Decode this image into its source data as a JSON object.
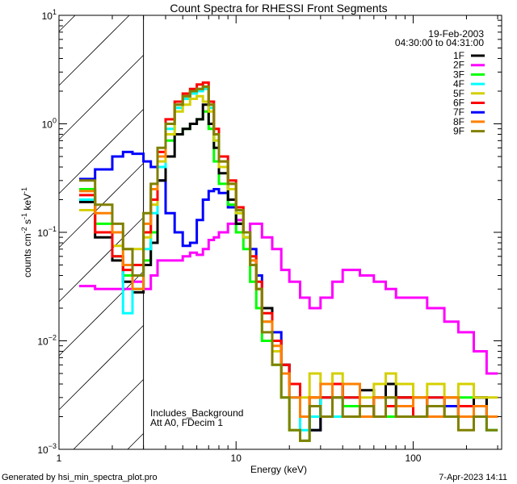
{
  "chart_data": {
    "type": "line",
    "style": "histogram-step",
    "title": "Count Spectra for RHESSI Front Segments",
    "xlabel": "Energy (keV)",
    "ylabel": {
      "base": "counts cm",
      "exp1": "-2",
      "mid": " s",
      "exp2": "-1",
      "mid2": " keV",
      "exp3": "-1"
    },
    "xscale": "log",
    "yscale": "log",
    "xlim": [
      1,
      316
    ],
    "ylim": [
      0.001,
      10
    ],
    "x_ticks": [
      {
        "value": 1,
        "label": "1"
      },
      {
        "value": 10,
        "label": "10"
      },
      {
        "value": 100,
        "label": "100"
      }
    ],
    "y_ticks": [
      {
        "value": 10,
        "base": "10",
        "exp": "1"
      },
      {
        "value": 1,
        "base": "10",
        "exp": "0"
      },
      {
        "value": 0.1,
        "base": "10",
        "exp": "−1"
      },
      {
        "value": 0.01,
        "base": "10",
        "exp": "−2"
      },
      {
        "value": 0.001,
        "base": "10",
        "exp": "−3"
      }
    ],
    "shaded_region": [
      1,
      3
    ],
    "legend_position": "top-right",
    "legend_header": [
      "19-Feb-2003",
      "04:30:00 to 04:31:00"
    ],
    "annotations": [
      "Includes_Background",
      "Att A0, FDecim 1"
    ],
    "bin_edges": [
      1.3,
      1.6,
      2.0,
      2.3,
      2.6,
      3.0,
      3.3,
      3.6,
      4.0,
      4.5,
      5.0,
      5.5,
      6.0,
      6.5,
      7.0,
      7.5,
      8.0,
      9.0,
      10,
      11,
      12,
      13,
      14,
      16,
      18,
      20,
      23,
      26,
      30,
      35,
      40,
      50,
      60,
      70,
      80,
      100,
      120,
      150,
      180,
      220,
      260,
      300
    ],
    "series": [
      {
        "name": "2F",
        "color": "#ff00ff",
        "values": [
          0.032,
          0.03,
          0.03,
          0.03,
          0.035,
          0.03,
          0.04,
          0.055,
          0.055,
          0.055,
          0.06,
          0.065,
          0.062,
          0.07,
          0.085,
          0.09,
          0.1,
          0.12,
          0.13,
          0.1,
          0.12,
          0.12,
          0.09,
          0.07,
          0.045,
          0.035,
          0.025,
          0.02,
          0.025,
          0.035,
          0.045,
          0.04,
          0.035,
          0.03,
          0.025,
          0.025,
          0.02,
          0.015,
          0.012,
          0.008,
          0.005
        ]
      },
      {
        "name": "7F",
        "color": "#0000ff",
        "values": [
          0.31,
          0.38,
          0.5,
          0.55,
          0.53,
          0.45,
          0.4,
          0.3,
          0.15,
          0.1,
          0.075,
          0.08,
          0.13,
          0.2,
          0.24,
          0.25,
          0.23,
          0.17,
          0.12,
          0.1,
          0.07,
          0.04,
          0.02,
          0.012,
          0.006,
          0.003,
          0.002,
          0.0015,
          0.003,
          0.003,
          0.004,
          0.002,
          0.003,
          0.0025,
          0.003,
          0.002,
          0.003,
          0.0025,
          0.002,
          0.003,
          0.002
        ]
      },
      {
        "name": "3F",
        "color": "#00ff00",
        "values": [
          0.25,
          0.12,
          0.06,
          0.04,
          0.03,
          0.055,
          0.1,
          0.4,
          0.7,
          0.8,
          0.9,
          1.0,
          1.1,
          1.3,
          0.9,
          0.45,
          0.28,
          0.18,
          0.1,
          0.07,
          0.035,
          0.02,
          0.01,
          0.006,
          0.003,
          0.0015,
          0.0012,
          0.003,
          0.002,
          0.003,
          0.0025,
          0.002,
          0.003,
          0.002,
          0.003,
          0.002,
          0.0025,
          0.002,
          0.003,
          0.002,
          0.0015
        ]
      },
      {
        "name": "1F",
        "color": "#000000",
        "values": [
          0.19,
          0.09,
          0.055,
          0.035,
          0.028,
          0.05,
          0.08,
          0.3,
          0.5,
          0.8,
          0.9,
          1.0,
          1.1,
          1.5,
          1.0,
          0.6,
          0.35,
          0.2,
          0.12,
          0.09,
          0.05,
          0.03,
          0.02,
          0.01,
          0.006,
          0.004,
          0.002,
          0.0015,
          0.003,
          0.004,
          0.003,
          0.0035,
          0.002,
          0.004,
          0.003,
          0.003,
          0.0025,
          0.003,
          0.002,
          0.003,
          0.002
        ]
      },
      {
        "name": "4F",
        "color": "#00ffff",
        "values": [
          0.2,
          0.1,
          0.06,
          0.018,
          0.03,
          0.07,
          0.15,
          0.4,
          0.9,
          1.4,
          1.7,
          1.9,
          2.0,
          2.1,
          1.4,
          0.7,
          0.4,
          0.25,
          0.15,
          0.09,
          0.05,
          0.03,
          0.015,
          0.008,
          0.005,
          0.003,
          0.0015,
          0.002,
          0.003,
          0.002,
          0.003,
          0.002,
          0.003,
          0.0025,
          0.002,
          0.002,
          0.003,
          0.002,
          0.0025,
          0.002,
          0.0015
        ]
      },
      {
        "name": "5F",
        "color": "#d4d000",
        "values": [
          0.16,
          0.1,
          0.075,
          0.07,
          0.07,
          0.09,
          0.18,
          0.45,
          0.8,
          1.3,
          1.5,
          1.7,
          1.8,
          1.6,
          1.3,
          0.7,
          0.4,
          0.25,
          0.15,
          0.09,
          0.05,
          0.03,
          0.015,
          0.008,
          0.005,
          0.004,
          0.003,
          0.005,
          0.004,
          0.005,
          0.004,
          0.003,
          0.004,
          0.005,
          0.004,
          0.003,
          0.004,
          0.003,
          0.004,
          0.003,
          0.003
        ]
      },
      {
        "name": "6F",
        "color": "#ff0000",
        "values": [
          0.22,
          0.1,
          0.06,
          0.045,
          0.05,
          0.1,
          0.2,
          0.55,
          1.1,
          1.6,
          1.9,
          2.1,
          2.3,
          2.4,
          1.6,
          0.9,
          0.5,
          0.3,
          0.17,
          0.1,
          0.06,
          0.035,
          0.018,
          0.01,
          0.006,
          0.004,
          0.002,
          0.003,
          0.003,
          0.004,
          0.003,
          0.002,
          0.003,
          0.0025,
          0.003,
          0.002,
          0.003,
          0.002,
          0.0025,
          0.002,
          0.002
        ]
      },
      {
        "name": "8F",
        "color": "#ff8000",
        "values": [
          0.24,
          0.15,
          0.1,
          0.05,
          0.03,
          0.12,
          0.25,
          0.5,
          1.0,
          1.5,
          1.8,
          2.0,
          2.1,
          2.2,
          1.5,
          0.8,
          0.45,
          0.28,
          0.16,
          0.1,
          0.055,
          0.03,
          0.015,
          0.009,
          0.005,
          0.003,
          0.002,
          0.003,
          0.004,
          0.003,
          0.004,
          0.002,
          0.003,
          0.003,
          0.0025,
          0.003,
          0.002,
          0.003,
          0.002,
          0.0025,
          0.002
        ]
      },
      {
        "name": "9F",
        "color": "#808000",
        "values": [
          0.3,
          0.18,
          0.12,
          0.07,
          0.04,
          0.15,
          0.28,
          0.6,
          1.0,
          1.5,
          1.8,
          2.0,
          2.1,
          2.2,
          1.5,
          0.8,
          0.45,
          0.28,
          0.16,
          0.1,
          0.05,
          0.03,
          0.012,
          0.006,
          0.003,
          0.0015,
          0.0012,
          0.0025,
          0.002,
          0.003,
          0.002,
          0.0025,
          0.002,
          0.003,
          0.002,
          0.002,
          0.0025,
          0.002,
          0.0015,
          0.002,
          0.0015
        ]
      }
    ],
    "legend_order": [
      "1F",
      "2F",
      "3F",
      "4F",
      "5F",
      "6F",
      "7F",
      "8F",
      "9F"
    ]
  },
  "footer": {
    "left": "Generated by hsi_min_spectra_plot.pro",
    "right": "7-Apr-2023 14:11"
  }
}
